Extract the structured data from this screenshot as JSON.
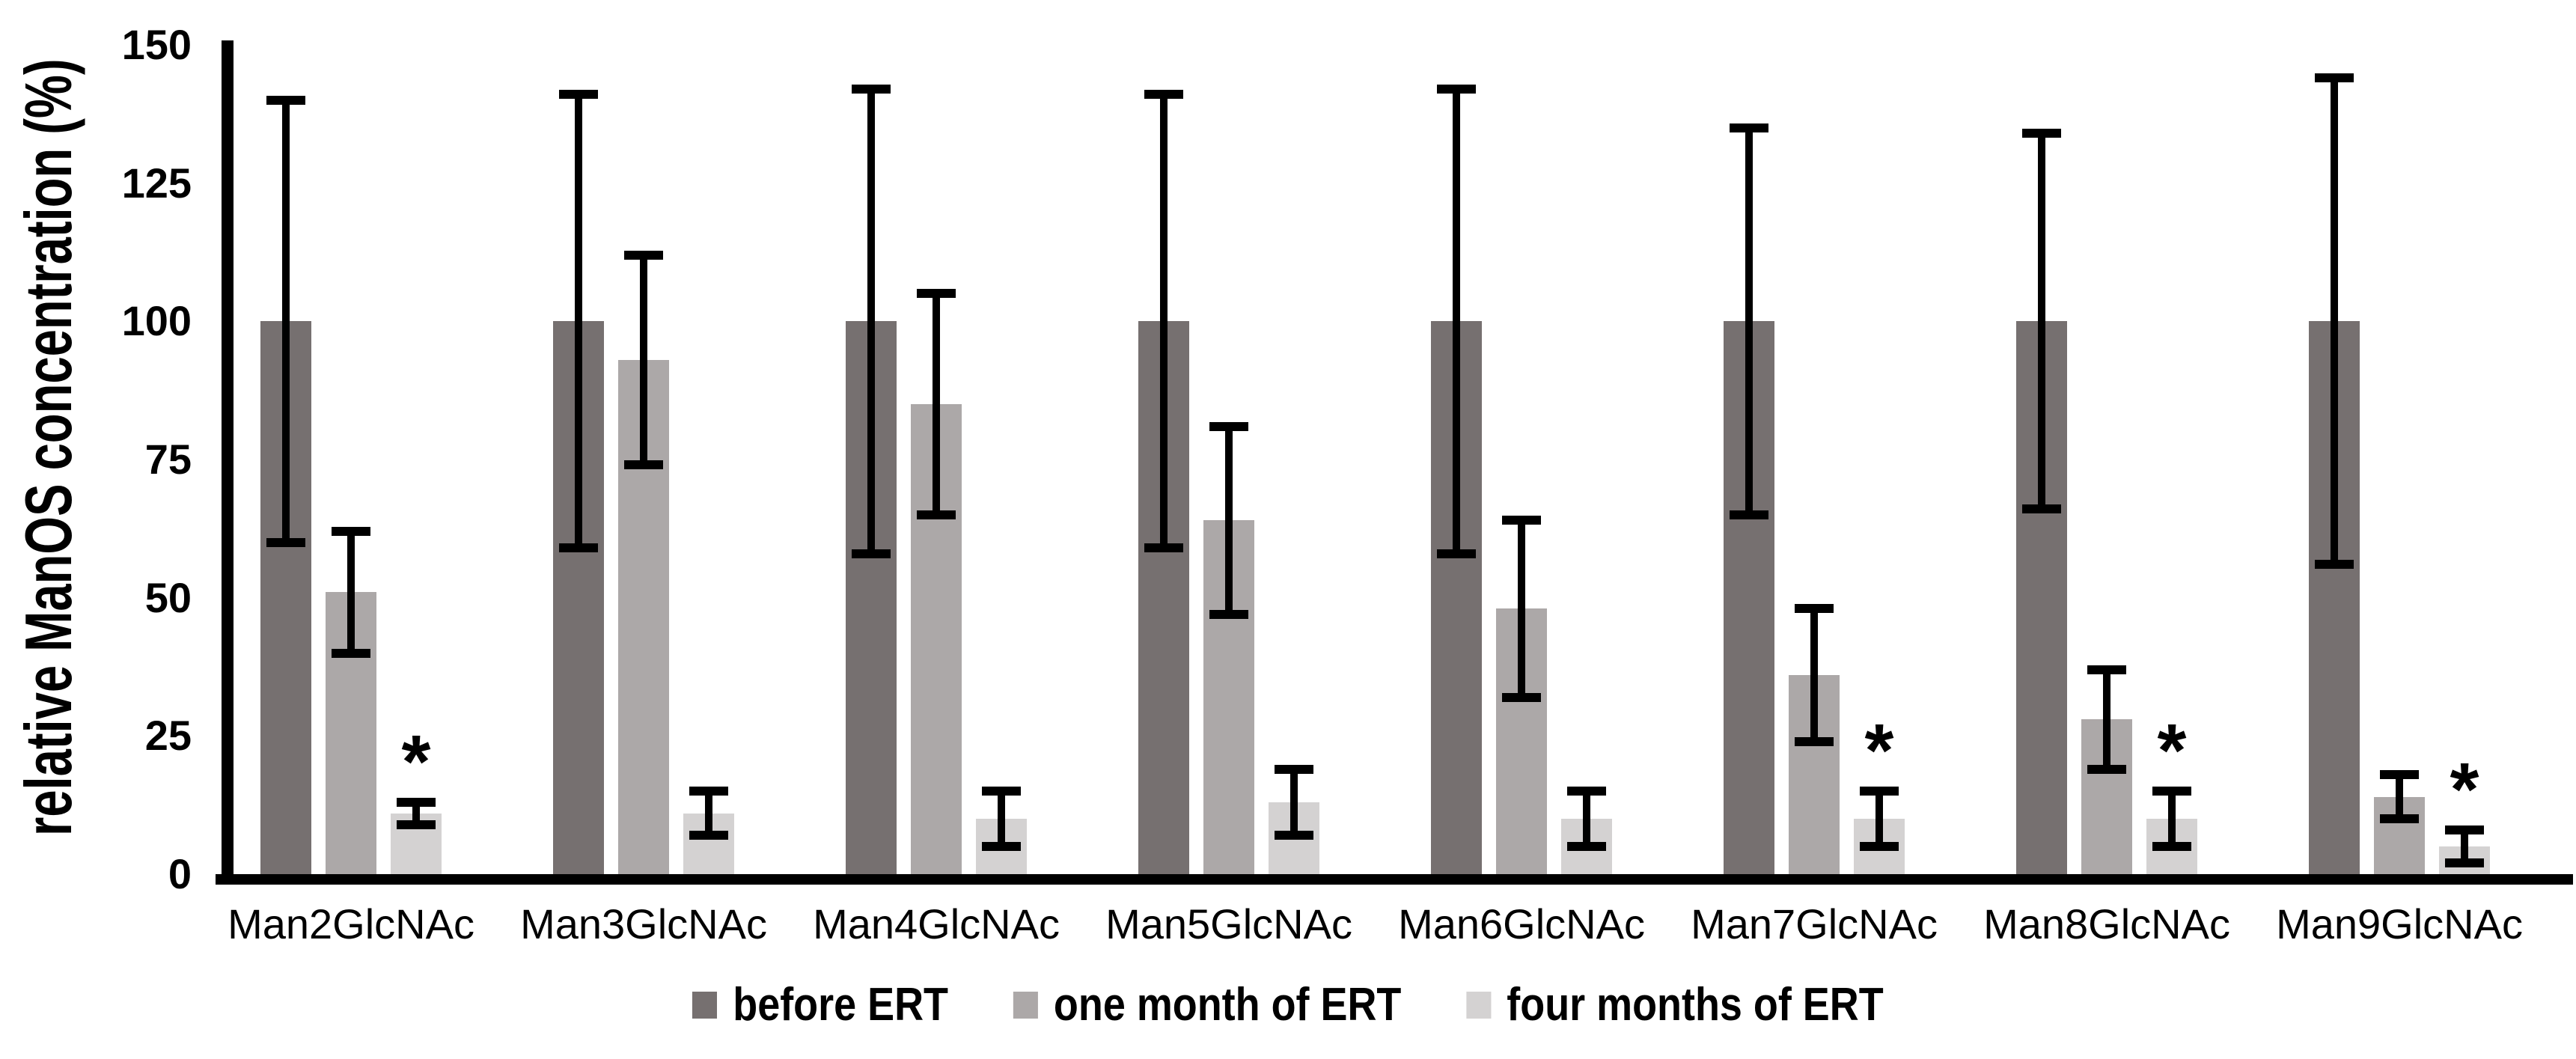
{
  "chart_data": {
    "type": "bar",
    "title": "",
    "xlabel": "",
    "ylabel": "relative ManOS concentration (%)",
    "ylim": [
      0,
      150
    ],
    "yticks": [
      0,
      25,
      50,
      75,
      100,
      125,
      150
    ],
    "grid": false,
    "legend_position": "bottom",
    "error_bars": true,
    "significance_marker": "*",
    "categories": [
      "Man2GlcNAc",
      "Man3GlcNAc",
      "Man4GlcNAc",
      "Man5GlcNAc",
      "Man6GlcNAc",
      "Man7GlcNAc",
      "Man8GlcNAc",
      "Man9GlcNAc"
    ],
    "series": [
      {
        "name": "before ERT",
        "color": "#767070",
        "values": [
          100,
          100,
          100,
          100,
          100,
          100,
          100,
          100
        ],
        "errors": [
          40,
          41,
          42,
          41,
          42,
          35,
          34,
          44
        ],
        "significant": [
          false,
          false,
          false,
          false,
          false,
          false,
          false,
          false
        ]
      },
      {
        "name": "one month of ERT",
        "color": "#ACA8A8",
        "values": [
          51,
          93,
          85,
          64,
          48,
          36,
          28,
          14
        ],
        "errors": [
          11,
          19,
          20,
          17,
          16,
          12,
          9,
          4
        ],
        "significant": [
          false,
          false,
          false,
          false,
          false,
          false,
          false,
          false
        ]
      },
      {
        "name": "four months of ERT",
        "color": "#D4D2D2",
        "values": [
          11,
          11,
          10,
          13,
          10,
          10,
          10,
          5
        ],
        "errors": [
          2,
          4,
          5,
          6,
          5,
          5,
          5,
          3
        ],
        "significant": [
          true,
          false,
          false,
          false,
          false,
          true,
          true,
          true
        ]
      }
    ],
    "axis_color": "#000000",
    "error_bar_color": "#000000"
  }
}
